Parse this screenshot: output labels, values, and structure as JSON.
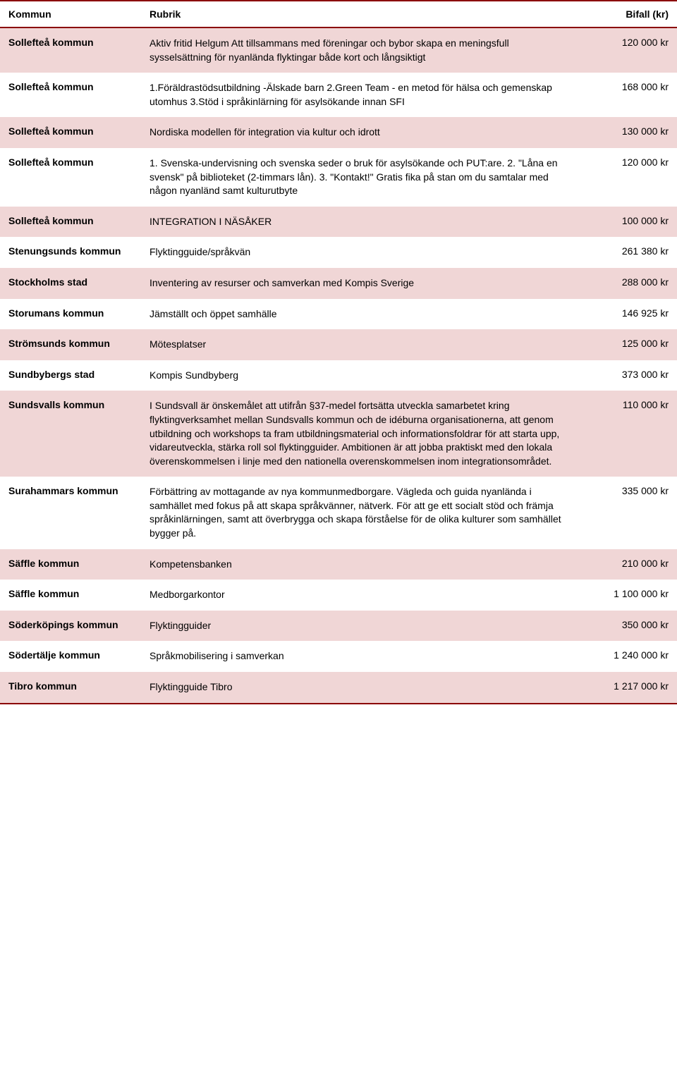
{
  "header": {
    "kommun": "Kommun",
    "rubrik": "Rubrik",
    "bifall": "Bifall (kr)"
  },
  "colors": {
    "border": "#8b0000",
    "shaded_row": "#f0d6d6",
    "background": "#ffffff",
    "text": "#000000"
  },
  "rows": [
    {
      "kommun": "Sollefteå kommun",
      "rubrik": "Aktiv fritid Helgum Att tillsammans med föreningar och bybor skapa en meningsfull sysselsättning för nyanlända flyktingar både kort och långsiktigt",
      "bifall": "120 000 kr",
      "shaded": true
    },
    {
      "kommun": "Sollefteå kommun",
      "rubrik": "1.Föräldrastödsutbildning -Älskade barn 2.Green Team - en metod för hälsa och gemenskap utomhus 3.Stöd i språkinlärning för asylsökande innan SFI",
      "bifall": "168 000 kr",
      "shaded": false
    },
    {
      "kommun": "Sollefteå kommun",
      "rubrik": "Nordiska modellen för integration via kultur och idrott",
      "bifall": "130 000 kr",
      "shaded": true
    },
    {
      "kommun": "Sollefteå kommun",
      "rubrik": "1. Svenska-undervisning och svenska seder o bruk för asylsökande och PUT:are. 2. \"Låna en svensk\" på biblioteket (2-timmars lån). 3. \"Kontakt!\" Gratis fika på stan om du samtalar med någon nyanländ samt kulturutbyte",
      "bifall": "120 000 kr",
      "shaded": false
    },
    {
      "kommun": "Sollefteå kommun",
      "rubrik": "INTEGRATION I NÄSÅKER",
      "bifall": "100 000 kr",
      "shaded": true
    },
    {
      "kommun": "Stenungsunds kommun",
      "rubrik": "Flyktingguide/språkvän",
      "bifall": "261 380 kr",
      "shaded": false
    },
    {
      "kommun": "Stockholms stad",
      "rubrik": "Inventering av resurser och samverkan med Kompis Sverige",
      "bifall": "288 000 kr",
      "shaded": true
    },
    {
      "kommun": "Storumans kommun",
      "rubrik": "Jämställt och öppet samhälle",
      "bifall": "146 925 kr",
      "shaded": false
    },
    {
      "kommun": "Strömsunds kommun",
      "rubrik": "Mötesplatser",
      "bifall": "125 000 kr",
      "shaded": true
    },
    {
      "kommun": "Sundbybergs stad",
      "rubrik": "Kompis Sundbyberg",
      "bifall": "373 000 kr",
      "shaded": false
    },
    {
      "kommun": "Sundsvalls kommun",
      "rubrik": "I Sundsvall är önskemålet att utifrån §37-medel fortsätta utveckla samarbetet kring flyktingverksamhet mellan Sundsvalls kommun och de idéburna organisationerna, att genom utbildning och workshops ta fram utbildningsmaterial och informationsfoldrar för att starta upp, vidareutveckla, stärka roll sol flyktingguider. Ambitionen är att jobba praktiskt med den lokala överenskommelsen i linje med den nationella overenskommelsen inom integrationsområdet.",
      "bifall": "110 000 kr",
      "shaded": true
    },
    {
      "kommun": "Surahammars kommun",
      "rubrik": "Förbättring av mottagande av nya kommunmedborgare. Vägleda och guida nyanlända i samhället med fokus på att skapa språkvänner, nätverk. För att ge ett socialt stöd och främja språkinlärningen, samt att överbrygga och skapa förståelse för de olika kulturer som samhället bygger på.",
      "bifall": "335 000 kr",
      "shaded": false
    },
    {
      "kommun": "Säffle kommun",
      "rubrik": "Kompetensbanken",
      "bifall": "210 000 kr",
      "shaded": true
    },
    {
      "kommun": "Säffle kommun",
      "rubrik": "Medborgarkontor",
      "bifall": "1 100 000 kr",
      "shaded": false
    },
    {
      "kommun": "Söderköpings kommun",
      "rubrik": "Flyktingguider",
      "bifall": "350 000 kr",
      "shaded": true
    },
    {
      "kommun": "Södertälje kommun",
      "rubrik": "Språkmobilisering i samverkan",
      "bifall": "1 240 000 kr",
      "shaded": false
    },
    {
      "kommun": "Tibro kommun",
      "rubrik": "Flyktingguide Tibro",
      "bifall": "1 217 000 kr",
      "shaded": true
    }
  ]
}
